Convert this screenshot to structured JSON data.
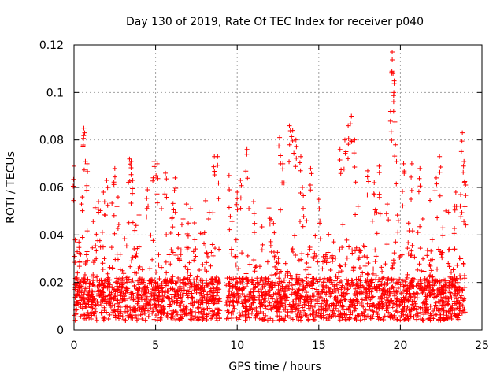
{
  "chart_data": {
    "type": "scatter",
    "title": "Day 130 of 2019, Rate Of TEC Index for receiver p040",
    "xlabel": "GPS time / hours",
    "ylabel": "ROTI / TECUs",
    "xlim": [
      0,
      25
    ],
    "ylim": [
      0,
      0.12
    ],
    "x_ticks": [
      0,
      5,
      10,
      15,
      20,
      25
    ],
    "x_tick_labels": [
      "0",
      "5",
      "10",
      "15",
      "20",
      "25"
    ],
    "y_ticks": [
      0,
      0.02,
      0.04,
      0.06,
      0.08,
      0.1,
      0.12
    ],
    "y_tick_labels": [
      "0",
      "0.02",
      "0.04",
      "0.06",
      "0.08",
      "0.1",
      "0.12"
    ],
    "grid": true,
    "marker": "+",
    "series": [
      {
        "name": "ROTI",
        "color": "#ff0000",
        "note": "Dense cloud of points every ~30 s from 0 to 24 h, mostly 0.005-0.03 TECU with a small data gap near 9.0-9.3 h; representative sample of visible points, including tallest excursions.",
        "points": [
          [
            0.0,
            0.069
          ],
          [
            0.3,
            0.037
          ],
          [
            0.5,
            0.056
          ],
          [
            0.6,
            0.085
          ],
          [
            0.65,
            0.083
          ],
          [
            0.8,
            0.07
          ],
          [
            1.5,
            0.054
          ],
          [
            1.8,
            0.058
          ],
          [
            2.0,
            0.063
          ],
          [
            2.5,
            0.068
          ],
          [
            2.7,
            0.056
          ],
          [
            3.4,
            0.072
          ],
          [
            3.5,
            0.071
          ],
          [
            3.6,
            0.063
          ],
          [
            3.8,
            0.044
          ],
          [
            4.5,
            0.059
          ],
          [
            4.9,
            0.071
          ],
          [
            5.1,
            0.07
          ],
          [
            5.6,
            0.066
          ],
          [
            6.0,
            0.047
          ],
          [
            6.2,
            0.064
          ],
          [
            7.0,
            0.045
          ],
          [
            7.4,
            0.038
          ],
          [
            8.0,
            0.041
          ],
          [
            8.6,
            0.073
          ],
          [
            8.8,
            0.073
          ],
          [
            9.5,
            0.065
          ],
          [
            10.0,
            0.058
          ],
          [
            10.2,
            0.063
          ],
          [
            10.6,
            0.076
          ],
          [
            11.0,
            0.054
          ],
          [
            12.0,
            0.047
          ],
          [
            12.6,
            0.081
          ],
          [
            12.8,
            0.07
          ],
          [
            13.2,
            0.086
          ],
          [
            13.4,
            0.084
          ],
          [
            13.6,
            0.08
          ],
          [
            13.9,
            0.073
          ],
          [
            14.0,
            0.06
          ],
          [
            14.5,
            0.068
          ],
          [
            15.0,
            0.055
          ],
          [
            16.3,
            0.076
          ],
          [
            16.6,
            0.08
          ],
          [
            16.8,
            0.086
          ],
          [
            17.0,
            0.09
          ],
          [
            17.2,
            0.08
          ],
          [
            18.0,
            0.067
          ],
          [
            18.4,
            0.062
          ],
          [
            18.7,
            0.069
          ],
          [
            19.2,
            0.053
          ],
          [
            19.4,
            0.092
          ],
          [
            19.5,
            0.117
          ],
          [
            19.55,
            0.108
          ],
          [
            19.6,
            0.1
          ],
          [
            19.7,
            0.078
          ],
          [
            20.2,
            0.07
          ],
          [
            20.5,
            0.045
          ],
          [
            20.7,
            0.07
          ],
          [
            21.2,
            0.068
          ],
          [
            22.2,
            0.064
          ],
          [
            22.4,
            0.073
          ],
          [
            22.6,
            0.043
          ],
          [
            23.4,
            0.058
          ],
          [
            23.7,
            0.057
          ],
          [
            23.8,
            0.083
          ],
          [
            23.9,
            0.071
          ],
          [
            24.0,
            0.061
          ]
        ]
      }
    ]
  }
}
